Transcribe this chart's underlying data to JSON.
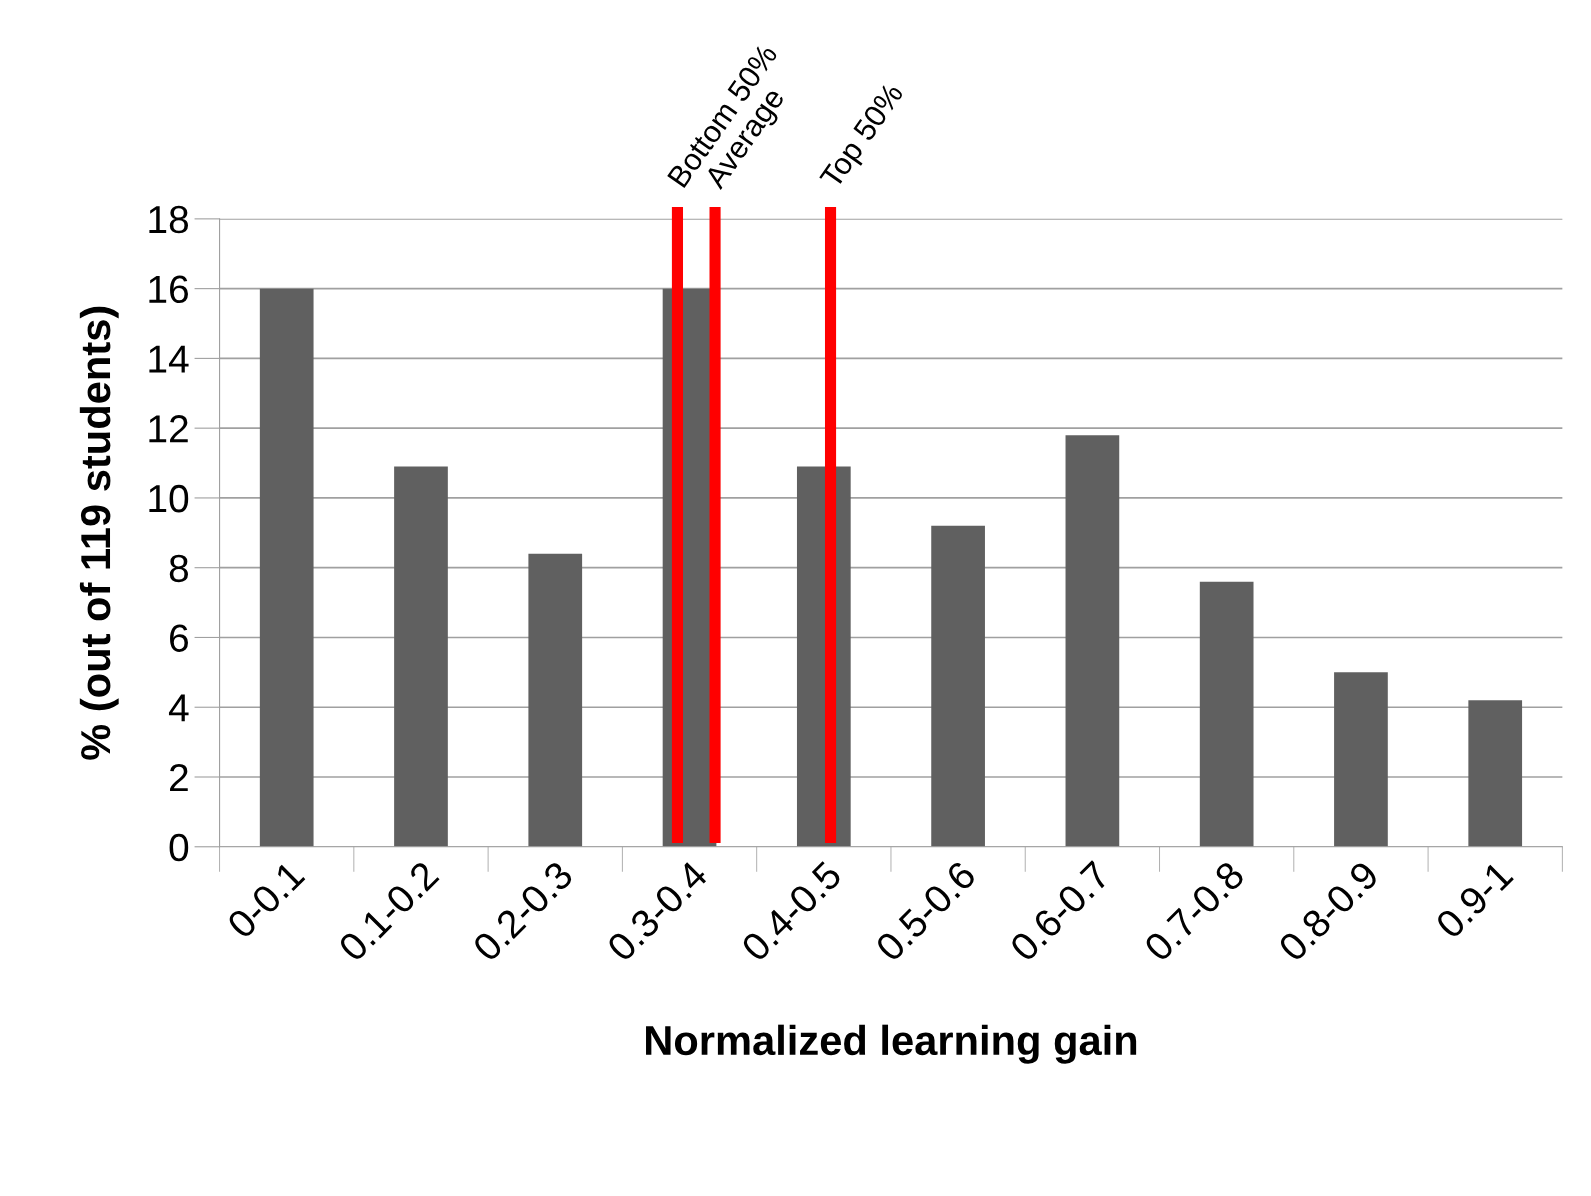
{
  "chart_data": {
    "type": "bar",
    "xlabel": "Normalized learning gain",
    "ylabel": "% (out of 119 students)",
    "categories": [
      "0-0.1",
      "0.1-0.2",
      "0.2-0.3",
      "0.3-0.4",
      "0.4-0.5",
      "0.5-0.6",
      "0.6-0.7",
      "0.7-0.8",
      "0.8-0.9",
      "0.9-1"
    ],
    "values": [
      16,
      10.9,
      8.4,
      16,
      10.9,
      9.2,
      11.8,
      7.6,
      5.0,
      4.2
    ],
    "color": "#606060",
    "ylim": [
      0,
      18
    ],
    "yticks": [
      0,
      2,
      4,
      6,
      8,
      10,
      12,
      14,
      16,
      18
    ],
    "grid": "y",
    "ref_lines": [
      {
        "axis": "x",
        "value": "0.3-0.4",
        "label": "Bottom 50%",
        "color": "#ff0000"
      },
      {
        "axis": "x",
        "value": "0.3-0.4",
        "label": "Average",
        "color": "#ff0000"
      },
      {
        "axis": "x",
        "value": "0.4-0.5",
        "label": "Top 50%",
        "color": "#ff0000"
      }
    ]
  }
}
